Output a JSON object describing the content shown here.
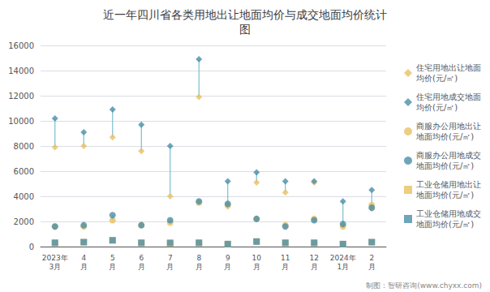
{
  "chart_data": {
    "type": "scatter",
    "title": "近一年四川省各类用地出让地面均价与成交地面均价统计\n图",
    "categories": [
      "2023年\n3月",
      "4\n月",
      "5\n月",
      "6\n月",
      "7\n月",
      "8\n月",
      "9\n月",
      "10\n月",
      "11\n月",
      "12\n月",
      "2024年\n1月",
      "2\n月"
    ],
    "series": [
      {
        "name": "住宅用地出让地面\n均价(元/㎡)",
        "color": "#E8C060",
        "marker": "diamond",
        "values": [
          7900,
          8000,
          8700,
          7600,
          4000,
          11900,
          3200,
          5100,
          4300,
          5100,
          1700,
          3000
        ]
      },
      {
        "name": "住宅用地成交地面\n均价(元/㎡)",
        "color": "#4A8FA8",
        "marker": "diamond",
        "values": [
          10200,
          9100,
          10900,
          9700,
          8000,
          14900,
          5200,
          5900,
          5200,
          5200,
          3600,
          4500
        ]
      },
      {
        "name": "商服办公用地出让\n地面均价(元/㎡)",
        "color": "#E8C060",
        "marker": "circle",
        "values": [
          1600,
          1600,
          2100,
          1700,
          1900,
          3500,
          3300,
          2200,
          1700,
          2200,
          1600,
          3300
        ]
      },
      {
        "name": "商服办公用地成交\n地面均价(元/㎡)",
        "color": "#4A8FA8",
        "marker": "circle",
        "values": [
          1600,
          1700,
          2500,
          1700,
          2100,
          3600,
          3400,
          2200,
          1600,
          2100,
          1800,
          3100
        ]
      },
      {
        "name": "工业仓储用地出让\n地面均价(元/㎡)",
        "color": "#E8C060",
        "marker": "square",
        "values": [
          300,
          350,
          500,
          300,
          250,
          300,
          200,
          400,
          300,
          300,
          200,
          350
        ]
      },
      {
        "name": "工业仓储用地成交\n地面均价(元/㎡)",
        "color": "#4A8FA8",
        "marker": "square",
        "values": [
          300,
          350,
          500,
          300,
          300,
          300,
          200,
          400,
          300,
          300,
          200,
          350
        ]
      }
    ],
    "stems": {
      "color": "#7BBFCC",
      "pairs": [
        [
          0,
          1
        ],
        [
          2,
          3
        ],
        [
          4,
          5
        ]
      ]
    },
    "ylim": [
      0,
      16000
    ],
    "yticks": [
      0,
      2000,
      4000,
      6000,
      8000,
      10000,
      12000,
      14000,
      16000
    ],
    "grid": true,
    "legend": "right",
    "annotations": [
      "制图：智研咨询(www.chyxx.com)"
    ]
  }
}
